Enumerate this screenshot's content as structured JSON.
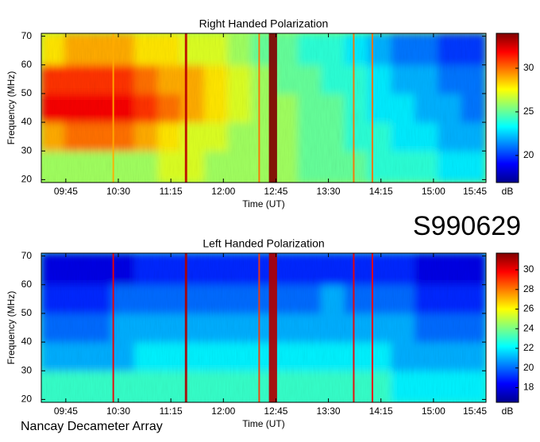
{
  "header": {
    "id": "S990629",
    "credit": "Nancay Decameter Array"
  },
  "chart_data": [
    {
      "type": "heatmap",
      "title": "Right Handed Polarization",
      "xlabel": "Time (UT)",
      "ylabel": "Frequency (MHz)",
      "colormap": "jet",
      "xlim": [
        564,
        945
      ],
      "xticks": [
        {
          "value": 585,
          "label": "09:45"
        },
        {
          "value": 630,
          "label": "10:30"
        },
        {
          "value": 675,
          "label": "11:15"
        },
        {
          "value": 720,
          "label": "12:00"
        },
        {
          "value": 765,
          "label": "12:45"
        },
        {
          "value": 810,
          "label": "13:30"
        },
        {
          "value": 855,
          "label": "14:15"
        },
        {
          "value": 900,
          "label": "15:00"
        },
        {
          "value": 945,
          "label": "15:45"
        }
      ],
      "ylim": [
        19,
        71
      ],
      "yticks": [
        20,
        30,
        40,
        50,
        60,
        70
      ],
      "x_bins": [
        564,
        584,
        604,
        624,
        644,
        664,
        684,
        704,
        724,
        744,
        764,
        784,
        804,
        824,
        844,
        864,
        884,
        904,
        924,
        945
      ],
      "y_bins": [
        19,
        30,
        40,
        50,
        60,
        71
      ],
      "values": [
        [
          26,
          26,
          26,
          26,
          26,
          27,
          27,
          26,
          26,
          26,
          26,
          25,
          25,
          25,
          24,
          24,
          24,
          23,
          23
        ],
        [
          29,
          30,
          30,
          30,
          29,
          28,
          27,
          27,
          26,
          26,
          26,
          25,
          25,
          24,
          24,
          23,
          23,
          22,
          22
        ],
        [
          32,
          32,
          32,
          32,
          31,
          30,
          29,
          28,
          27,
          26,
          26,
          25,
          25,
          24,
          23,
          23,
          22,
          22,
          21
        ],
        [
          31,
          31,
          31,
          31,
          30,
          29,
          29,
          28,
          27,
          26,
          25,
          25,
          24,
          24,
          23,
          22,
          22,
          21,
          21
        ],
        [
          28,
          29,
          29,
          29,
          28,
          28,
          27,
          27,
          26,
          25,
          25,
          24,
          24,
          23,
          22,
          21,
          21,
          20,
          20
        ]
      ],
      "bursts": {
        "x": [
          625,
          687,
          750,
          759,
          831,
          847
        ],
        "duration": [
          1,
          2,
          1,
          7,
          1,
          1
        ],
        "values": [
          29,
          33,
          30,
          34,
          30,
          30
        ]
      },
      "colorbar": {
        "label": "dB",
        "lim": [
          16.9,
          34
        ],
        "ticks": [
          20,
          25,
          30
        ]
      }
    },
    {
      "type": "heatmap",
      "title": "Left Handed Polarization",
      "xlabel": "Time (UT)",
      "ylabel": "Frequency (MHz)",
      "colormap": "jet",
      "xlim": [
        564,
        945
      ],
      "xticks": [
        {
          "value": 585,
          "label": "09:45"
        },
        {
          "value": 630,
          "label": "10:30"
        },
        {
          "value": 675,
          "label": "11:15"
        },
        {
          "value": 720,
          "label": "12:00"
        },
        {
          "value": 765,
          "label": "12:45"
        },
        {
          "value": 810,
          "label": "13:30"
        },
        {
          "value": 855,
          "label": "14:15"
        },
        {
          "value": 900,
          "label": "15:00"
        },
        {
          "value": 945,
          "label": "15:45"
        }
      ],
      "ylim": [
        19,
        71
      ],
      "yticks": [
        20,
        30,
        40,
        50,
        60,
        70
      ],
      "x_bins": [
        564,
        584,
        604,
        624,
        644,
        664,
        684,
        704,
        724,
        744,
        764,
        784,
        804,
        824,
        844,
        864,
        884,
        904,
        924,
        945
      ],
      "y_bins": [
        19,
        30,
        40,
        50,
        60,
        71
      ],
      "values": [
        [
          23,
          23,
          23,
          23,
          23,
          23,
          23,
          23,
          23,
          23,
          23,
          23,
          23,
          23,
          23,
          22,
          22,
          22,
          22
        ],
        [
          21,
          21,
          21,
          21,
          22,
          22,
          22,
          22,
          22,
          22,
          22,
          22,
          22,
          22,
          22,
          21,
          21,
          21,
          21
        ],
        [
          20,
          20,
          20,
          21,
          21,
          21,
          21,
          21,
          21,
          21,
          21,
          21,
          21,
          21,
          21,
          21,
          20,
          20,
          20
        ],
        [
          19,
          19,
          19,
          20,
          20,
          20,
          20,
          20,
          20,
          20,
          20,
          20,
          21,
          20,
          20,
          20,
          19,
          19,
          19
        ],
        [
          18,
          18,
          18,
          18,
          19,
          19,
          19,
          19,
          19,
          19,
          19,
          19,
          19,
          19,
          19,
          19,
          18,
          18,
          18
        ]
      ],
      "bursts": {
        "x": [
          625,
          687,
          750,
          759,
          831,
          847
        ],
        "duration": [
          1,
          2,
          1,
          7,
          1,
          1
        ],
        "values": [
          30,
          31,
          29,
          31,
          30,
          30
        ]
      },
      "colorbar": {
        "label": "dB",
        "lim": [
          16.5,
          31.7
        ],
        "ticks": [
          18,
          20,
          22,
          24,
          26,
          28,
          30
        ]
      }
    }
  ]
}
